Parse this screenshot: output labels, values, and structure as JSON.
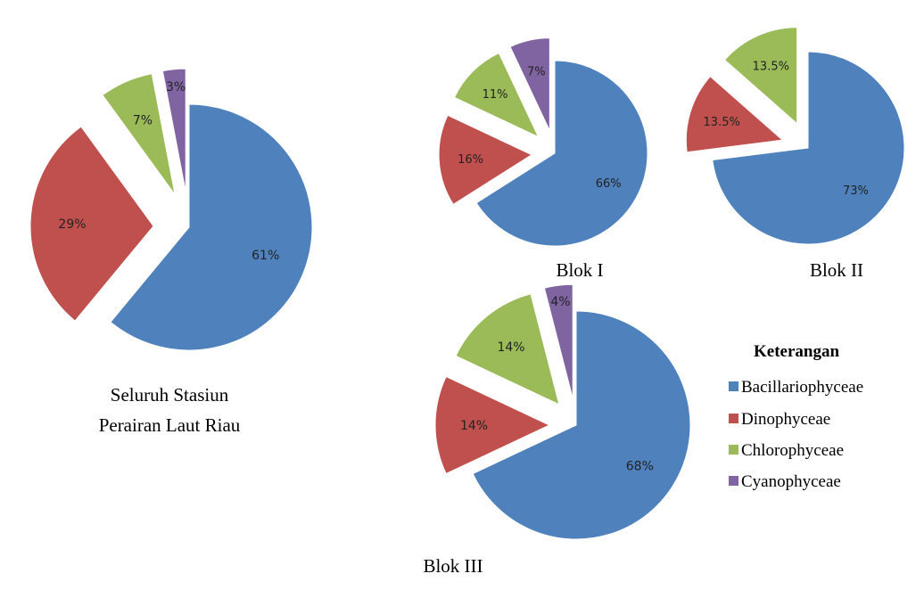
{
  "colors": {
    "Bacillariophyceae": "#4F81BD",
    "Dinophyceae": "#C0504D",
    "Chlorophyceae": "#9BBB59",
    "Cyanophyceae": "#8064A2"
  },
  "chart_data": [
    {
      "type": "pie",
      "title": "Seluruh Stasiun Perairan Laut Riau",
      "caption_lines": [
        "Seluruh Stasiun",
        "Perairan Laut Riau"
      ],
      "slices": [
        {
          "name": "Bacillariophyceae",
          "value": 61,
          "label": "61%"
        },
        {
          "name": "Dinophyceae",
          "value": 29,
          "label": "29%"
        },
        {
          "name": "Chlorophyceae",
          "value": 7,
          "label": "7%"
        },
        {
          "name": "Cyanophyceae",
          "value": 3,
          "label": "3%"
        }
      ],
      "exploded": [
        "Dinophyceae",
        "Chlorophyceae",
        "Cyanophyceae"
      ]
    },
    {
      "type": "pie",
      "title": "Blok I",
      "caption_lines": [
        "Blok I"
      ],
      "slices": [
        {
          "name": "Bacillariophyceae",
          "value": 66,
          "label": "66%"
        },
        {
          "name": "Dinophyceae",
          "value": 16,
          "label": "16%"
        },
        {
          "name": "Chlorophyceae",
          "value": 11,
          "label": "11%"
        },
        {
          "name": "Cyanophyceae",
          "value": 7,
          "label": "7%"
        }
      ],
      "exploded": [
        "Dinophyceae",
        "Chlorophyceae",
        "Cyanophyceae"
      ]
    },
    {
      "type": "pie",
      "title": "Blok II",
      "caption_lines": [
        "Blok II"
      ],
      "slices": [
        {
          "name": "Bacillariophyceae",
          "value": 73,
          "label": "73%"
        },
        {
          "name": "Dinophyceae",
          "value": 13.5,
          "label": "13.5%"
        },
        {
          "name": "Chlorophyceae",
          "value": 13.5,
          "label": "13.5%"
        }
      ],
      "exploded": [
        "Dinophyceae",
        "Chlorophyceae"
      ]
    },
    {
      "type": "pie",
      "title": "Blok III",
      "caption_lines": [
        "Blok III"
      ],
      "slices": [
        {
          "name": "Bacillariophyceae",
          "value": 68,
          "label": "68%"
        },
        {
          "name": "Dinophyceae",
          "value": 14,
          "label": "14%"
        },
        {
          "name": "Chlorophyceae",
          "value": 14,
          "label": "14%"
        },
        {
          "name": "Cyanophyceae",
          "value": 4,
          "label": "4%"
        }
      ],
      "exploded": [
        "Dinophyceae",
        "Chlorophyceae",
        "Cyanophyceae"
      ]
    }
  ],
  "legend": {
    "title": "Keterangan",
    "items": [
      "Bacillariophyceae",
      "Dinophyceae",
      "Chlorophyceae",
      "Cyanophyceae"
    ]
  }
}
